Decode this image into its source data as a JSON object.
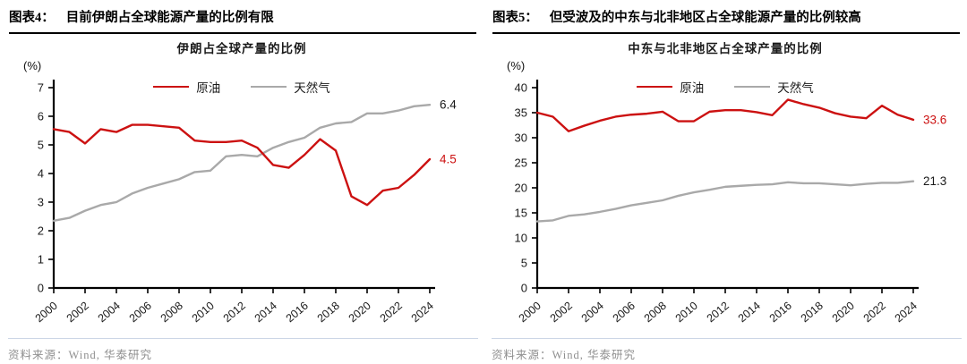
{
  "page": {
    "source_label": "资料来源：Wind, 华泰研究"
  },
  "colors": {
    "oil_red": "#CC1111",
    "gas_gray": "#A9A9A9",
    "axis_black": "#000000",
    "end_label_dark": "#1A1A1A",
    "source_gray": "#8F8F8F",
    "footer_rule": "#CCD6E6"
  },
  "figures": [
    {
      "label": "图表4：",
      "title": "目前伊朗占全球能源产量的比例有限"
    },
    {
      "label": "图表5：",
      "title": "但受波及的中东与北非地区占全球能源产量的比例较高"
    }
  ],
  "chart_data": [
    {
      "type": "line",
      "title": "伊朗占全球产量的比例",
      "unit_label": "(%)",
      "grid": false,
      "legend_position": "top-center",
      "x": [
        2000,
        2001,
        2002,
        2003,
        2004,
        2005,
        2006,
        2007,
        2008,
        2009,
        2010,
        2011,
        2012,
        2013,
        2014,
        2015,
        2016,
        2017,
        2018,
        2019,
        2020,
        2021,
        2022,
        2023,
        2024
      ],
      "x_tick_labels": [
        "2000",
        "2002",
        "2004",
        "2006",
        "2008",
        "2010",
        "2012",
        "2014",
        "2016",
        "2018",
        "2020",
        "2022",
        "2024"
      ],
      "ylim": [
        0,
        7
      ],
      "ytick_step": 1,
      "series": [
        {
          "name": "原油",
          "color": "#CC1111",
          "values": [
            5.55,
            5.45,
            5.05,
            5.55,
            5.45,
            5.7,
            5.7,
            5.65,
            5.6,
            5.15,
            5.1,
            5.1,
            5.15,
            4.9,
            4.3,
            4.2,
            4.65,
            5.2,
            4.8,
            3.2,
            2.9,
            3.4,
            3.5,
            3.95,
            4.5
          ],
          "end_label": "4.5",
          "end_label_color": "#CC1111"
        },
        {
          "name": "天然气",
          "color": "#A9A9A9",
          "values": [
            2.35,
            2.45,
            2.7,
            2.9,
            3.0,
            3.3,
            3.5,
            3.65,
            3.8,
            4.05,
            4.1,
            4.6,
            4.65,
            4.6,
            4.9,
            5.1,
            5.25,
            5.6,
            5.75,
            5.8,
            6.1,
            6.1,
            6.2,
            6.35,
            6.4
          ],
          "end_label": "6.4",
          "end_label_color": "#1A1A1A"
        }
      ]
    },
    {
      "type": "line",
      "title": "中东与北非地区占全球产量的比例",
      "unit_label": "(%)",
      "grid": false,
      "legend_position": "top-center",
      "x": [
        2000,
        2001,
        2002,
        2003,
        2004,
        2005,
        2006,
        2007,
        2008,
        2009,
        2010,
        2011,
        2012,
        2013,
        2014,
        2015,
        2016,
        2017,
        2018,
        2019,
        2020,
        2021,
        2022,
        2023,
        2024
      ],
      "x_tick_labels": [
        "2000",
        "2002",
        "2004",
        "2006",
        "2008",
        "2010",
        "2012",
        "2014",
        "2016",
        "2018",
        "2020",
        "2022",
        "2024"
      ],
      "ylim": [
        0,
        40
      ],
      "ytick_step": 5,
      "series": [
        {
          "name": "原油",
          "color": "#CC1111",
          "values": [
            35.0,
            34.2,
            31.3,
            32.4,
            33.4,
            34.2,
            34.6,
            34.8,
            35.2,
            33.3,
            33.3,
            35.2,
            35.5,
            35.5,
            35.1,
            34.5,
            37.6,
            36.7,
            36.0,
            34.9,
            34.2,
            33.9,
            36.4,
            34.6,
            33.6
          ],
          "end_label": "33.6",
          "end_label_color": "#CC1111"
        },
        {
          "name": "天然气",
          "color": "#A9A9A9",
          "values": [
            13.3,
            13.5,
            14.4,
            14.7,
            15.2,
            15.8,
            16.5,
            17.0,
            17.5,
            18.4,
            19.1,
            19.6,
            20.2,
            20.4,
            20.6,
            20.7,
            21.1,
            20.9,
            20.9,
            20.7,
            20.5,
            20.8,
            21.0,
            21.0,
            21.3
          ],
          "end_label": "21.3",
          "end_label_color": "#1A1A1A"
        }
      ]
    }
  ]
}
